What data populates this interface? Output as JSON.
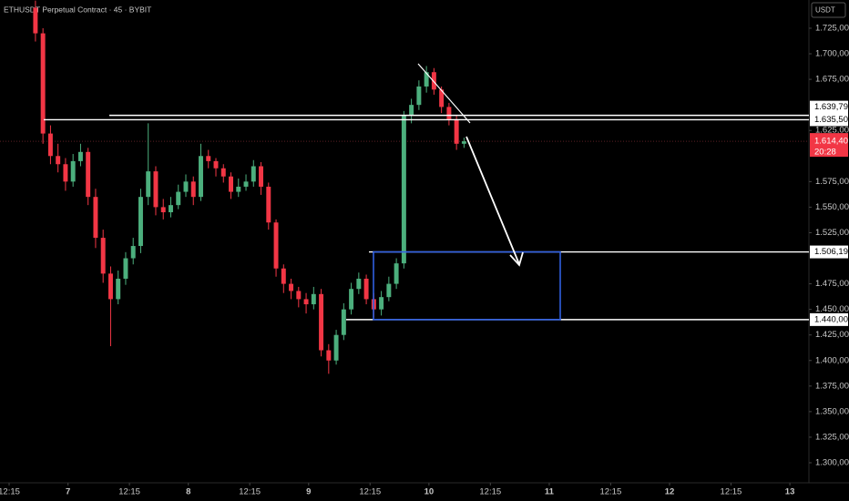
{
  "chart_data": {
    "type": "candlestick",
    "title": "ETHUSDT Perpetual Contract · 45 · BYBIT",
    "currency": "USDT",
    "up_color": "#4caf7d",
    "down_color": "#f23645",
    "x": [
      17.5,
      19,
      20.5,
      22,
      23.5,
      25,
      26.5,
      28,
      29.5,
      31,
      32.5,
      34,
      35.5,
      37,
      38.5,
      40,
      41.5,
      43,
      44.5,
      46,
      47.5,
      49,
      50.5,
      52,
      53.5,
      55,
      56.5,
      58,
      59.5,
      61,
      62.5,
      64,
      65.5,
      67,
      68.5,
      70,
      71.5,
      73,
      74.5,
      76,
      77.5,
      79,
      80.5,
      82,
      83.5,
      85,
      86.5,
      88,
      89.5,
      91,
      92.5,
      94,
      95.5,
      97,
      98.5,
      100,
      101.5,
      103
    ],
    "open": [
      1745,
      1720,
      1622,
      1600,
      1592,
      1575,
      1595,
      1604,
      1560,
      1520,
      1485,
      1460,
      1480,
      1500,
      1512,
      1560,
      1585,
      1550,
      1545,
      1552,
      1565,
      1575,
      1560,
      1600,
      1595,
      1588,
      1580,
      1565,
      1570,
      1575,
      1590,
      1570,
      1535,
      1490,
      1475,
      1468,
      1460,
      1455,
      1465,
      1410,
      1400,
      1425,
      1450,
      1470,
      1480,
      1460,
      1450,
      1462,
      1475,
      1495,
      1640,
      1650,
      1668,
      1682,
      1665,
      1648,
      1636,
      1612
    ],
    "high": [
      1752,
      1725,
      1630,
      1612,
      1598,
      1602,
      1612,
      1608,
      1568,
      1528,
      1492,
      1488,
      1506,
      1520,
      1568,
      1632,
      1590,
      1558,
      1560,
      1572,
      1582,
      1580,
      1612,
      1606,
      1598,
      1592,
      1584,
      1578,
      1582,
      1596,
      1594,
      1574,
      1538,
      1494,
      1480,
      1472,
      1466,
      1472,
      1470,
      1416,
      1430,
      1456,
      1476,
      1486,
      1484,
      1466,
      1468,
      1482,
      1500,
      1644,
      1656,
      1674,
      1688,
      1686,
      1668,
      1652,
      1640,
      1618
    ],
    "low": [
      1712,
      1612,
      1592,
      1584,
      1566,
      1570,
      1590,
      1552,
      1510,
      1476,
      1414,
      1455,
      1474,
      1494,
      1505,
      1552,
      1542,
      1538,
      1540,
      1548,
      1560,
      1552,
      1556,
      1588,
      1580,
      1574,
      1558,
      1560,
      1566,
      1570,
      1562,
      1528,
      1482,
      1466,
      1460,
      1452,
      1446,
      1450,
      1404,
      1387,
      1396,
      1420,
      1445,
      1465,
      1455,
      1442,
      1444,
      1458,
      1470,
      1490,
      1632,
      1645,
      1662,
      1660,
      1642,
      1630,
      1606,
      1608
    ],
    "close": [
      1720,
      1622,
      1600,
      1592,
      1575,
      1595,
      1604,
      1560,
      1520,
      1485,
      1460,
      1480,
      1500,
      1512,
      1560,
      1585,
      1550,
      1545,
      1552,
      1565,
      1575,
      1560,
      1600,
      1595,
      1588,
      1580,
      1565,
      1570,
      1575,
      1590,
      1570,
      1535,
      1490,
      1475,
      1468,
      1460,
      1455,
      1465,
      1410,
      1400,
      1425,
      1450,
      1470,
      1480,
      1460,
      1450,
      1462,
      1475,
      1495,
      1640,
      1650,
      1668,
      1682,
      1665,
      1648,
      1636,
      1612,
      1614.4
    ],
    "xlim": [
      10.43,
      171.8
    ],
    "xticks": [
      {
        "value": 12.25,
        "label": "12:15"
      },
      {
        "value": 24,
        "label": "7"
      },
      {
        "value": 36.25,
        "label": "12:15"
      },
      {
        "value": 48,
        "label": "8"
      },
      {
        "value": 60.25,
        "label": "12:15"
      },
      {
        "value": 72,
        "label": "9"
      },
      {
        "value": 84.25,
        "label": "12:15"
      },
      {
        "value": 96,
        "label": "10"
      },
      {
        "value": 108.25,
        "label": "12:15"
      },
      {
        "value": 120,
        "label": "11"
      },
      {
        "value": 132.25,
        "label": "12:15"
      },
      {
        "value": 144,
        "label": "12"
      },
      {
        "value": 156.25,
        "label": "12:15"
      },
      {
        "value": 168,
        "label": "13"
      }
    ],
    "ylim": [
      1280.4,
      1752.6
    ],
    "yticks": [
      {
        "value": 1300,
        "label": "1.300,00"
      },
      {
        "value": 1325,
        "label": "1.325,00"
      },
      {
        "value": 1350,
        "label": "1.350,00"
      },
      {
        "value": 1375,
        "label": "1.375,00"
      },
      {
        "value": 1400,
        "label": "1.400,00"
      },
      {
        "value": 1425,
        "label": "1.425,00"
      },
      {
        "value": 1450,
        "label": "1.450,00"
      },
      {
        "value": 1475,
        "label": "1.475,00"
      },
      {
        "value": 1525,
        "label": "1.525,00"
      },
      {
        "value": 1550,
        "label": "1.550,00"
      },
      {
        "value": 1575,
        "label": "1.575,00"
      },
      {
        "value": 1625,
        "label": "1.625,00"
      },
      {
        "value": 1675,
        "label": "1.675,00"
      },
      {
        "value": 1700,
        "label": "1.700,00"
      },
      {
        "value": 1725,
        "label": "1.725,00"
      }
    ],
    "levels": [
      {
        "value": 1639.79,
        "label": "1.639,79"
      },
      {
        "value": 1635.5,
        "label": "1.635,50"
      },
      {
        "value": 1506.19,
        "label": "1.506,19"
      },
      {
        "value": 1440,
        "label": "1.440,00"
      }
    ],
    "last_price": {
      "value": 1614.4,
      "label": "1.614,40"
    },
    "countdown": "20:28"
  }
}
